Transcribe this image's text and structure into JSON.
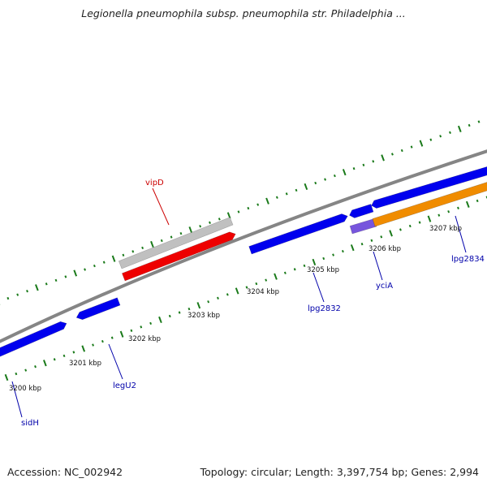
{
  "title": "Legionella pneumophila subsp. pneumophila str. Philadelphia ...",
  "footer": {
    "accession": "Accession: NC_002942",
    "topology": "Topology: circular; Length: 3,397,754 bp; Genes: 2,994"
  },
  "colors": {
    "backbone": "#808080",
    "forward_gene": "#0000ee",
    "forward_gene_alt": "#7755dd",
    "reverse_gene": "#ee0000",
    "pseudo_gene": "#c0c0c0",
    "orange_gene": "#f08c00",
    "tick": "#1a7a1a",
    "label_blue": "#0000aa",
    "label_red": "#cc0000"
  },
  "scale": {
    "unit": "kbp",
    "labels": [
      "3200 kbp",
      "3201 kbp",
      "3202 kbp",
      "3203 kbp",
      "3204 kbp",
      "3205 kbp",
      "3206 kbp",
      "3207 kbp"
    ]
  },
  "genes": [
    {
      "name": "sidH",
      "strand": "+",
      "label_color": "label_blue"
    },
    {
      "name": "legU2",
      "strand": "+",
      "label_color": "label_blue"
    },
    {
      "name": "vipD",
      "strand": "-",
      "label_color": "label_red"
    },
    {
      "name": "lpg2832",
      "strand": "+",
      "label_color": "label_blue"
    },
    {
      "name": "yciA",
      "strand": "+",
      "label_color": "label_blue"
    },
    {
      "name": "lpg2834",
      "strand": "+",
      "label_color": "label_blue"
    }
  ]
}
